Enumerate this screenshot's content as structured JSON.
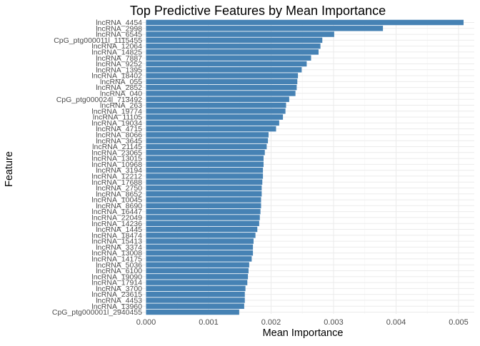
{
  "chart_data": {
    "type": "bar",
    "orientation": "horizontal",
    "title": "Top Predictive Features by Mean Importance",
    "xlabel": "Mean Importance",
    "ylabel": "Feature",
    "xlim": [
      0,
      0.0051
    ],
    "xticks": [
      "0.000",
      "0.001",
      "0.002",
      "0.003",
      "0.004",
      "0.005"
    ],
    "grid": true,
    "bar_color": "#4682B4",
    "categories": [
      "lncRNA_4454",
      "lncRNA_2998",
      "lncRNA_6545",
      "CpG_ptg000011l_1115455",
      "lncRNA_12064",
      "lncRNA_14825",
      "lncRNA_7887",
      "lncRNA_9252",
      "lncRNA_1395",
      "lncRNA_18402",
      "lncRNA_055",
      "lncRNA_2852",
      "lncRNA_040",
      "CpG_ptg000024l_713492",
      "lncRNA_263",
      "lncRNA_19774",
      "lncRNA_11105",
      "lncRNA_19034",
      "lncRNA_4715",
      "lncRNA_8066",
      "lncRNA_3645",
      "lncRNA_21145",
      "lncRNA_23065",
      "lncRNA_13015",
      "lncRNA_10968",
      "lncRNA_3194",
      "lncRNA_12212",
      "lncRNA_17688",
      "lncRNA_2750",
      "lncRNA_8652",
      "lncRNA_10045",
      "lncRNA_8690",
      "lncRNA_16447",
      "lncRNA_22049",
      "lncRNA_14236",
      "lncRNA_1445",
      "lncRNA_18474",
      "lncRNA_15413",
      "lncRNA_3374",
      "lncRNA_13008",
      "lncRNA_14175",
      "lncRNA_5036",
      "lncRNA_6100",
      "lncRNA_19090",
      "lncRNA_17914",
      "lncRNA_3700",
      "lncRNA_23615",
      "lncRNA_4453",
      "lncRNA_13960",
      "CpG_ptg000001l_2940455"
    ],
    "values": [
      0.00508,
      0.00379,
      0.00301,
      0.00282,
      0.00279,
      0.00276,
      0.00264,
      0.00257,
      0.00249,
      0.00243,
      0.00242,
      0.00241,
      0.00239,
      0.00229,
      0.00224,
      0.00223,
      0.00219,
      0.00213,
      0.00208,
      0.00196,
      0.00195,
      0.00193,
      0.0019,
      0.00188,
      0.00188,
      0.00187,
      0.00187,
      0.00186,
      0.00185,
      0.00185,
      0.00184,
      0.00184,
      0.00183,
      0.00182,
      0.00181,
      0.00178,
      0.00175,
      0.00172,
      0.00171,
      0.00171,
      0.00169,
      0.00165,
      0.00164,
      0.00163,
      0.00162,
      0.00159,
      0.00158,
      0.00158,
      0.00157,
      0.00149
    ]
  }
}
